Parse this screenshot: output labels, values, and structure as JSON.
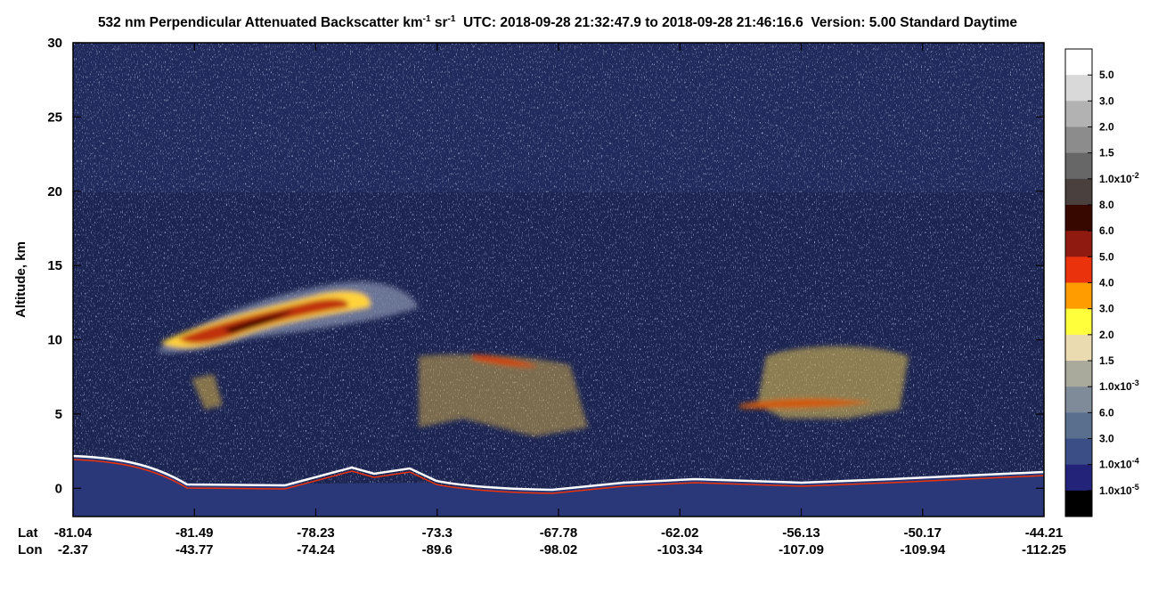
{
  "chart_data": {
    "type": "heatmap",
    "title": [
      "532 nm Perpendicular Attenuated Backscatter km",
      "-1",
      " sr",
      "-1",
      "  UTC: 2018-09-28 21:32:47.9 to 2018-09-28 21:46:16.6  Version: 5.00 Standard Daytime"
    ],
    "ylabel": "Altitude, km",
    "ylim": [
      -1.9,
      30
    ],
    "yticks": [
      0,
      5,
      10,
      15,
      20,
      25,
      30
    ],
    "x_rows": [
      {
        "name": "Lat",
        "labels": [
          -81.04,
          -81.49,
          -78.23,
          -73.3,
          -67.78,
          -62.02,
          -56.13,
          -50.17,
          -44.21
        ]
      },
      {
        "name": "Lon",
        "labels": [
          -2.37,
          -43.77,
          -74.24,
          -89.6,
          -98.02,
          -103.34,
          -107.09,
          -109.94,
          -112.25
        ]
      }
    ],
    "colorbar": {
      "colors": [
        "#ffffff",
        "#d9d9d9",
        "#b2b2b2",
        "#8c8c8c",
        "#676767",
        "#4a403d",
        "#360800",
        "#8e1a10",
        "#ea330d",
        "#ff9c00",
        "#ffff3c",
        "#eadcb0",
        "#aaaa9c",
        "#808b99",
        "#5a6f8e",
        "#3b4e86",
        "#232379",
        "#000000"
      ],
      "labels": [
        "5.0",
        "3.0",
        "2.0",
        "1.5",
        {
          "label": "1.0x10",
          "exponent": "-2"
        },
        "8.0",
        "6.0",
        "5.0",
        "4.0",
        "3.0",
        "2.0",
        "1.5",
        {
          "label": "1.0x10",
          "exponent": "-3"
        },
        "6.0",
        "3.0",
        {
          "label": "1.0x10",
          "exponent": "-4"
        },
        {
          "label": "1.0x10",
          "exponent": "-5"
        }
      ]
    }
  }
}
